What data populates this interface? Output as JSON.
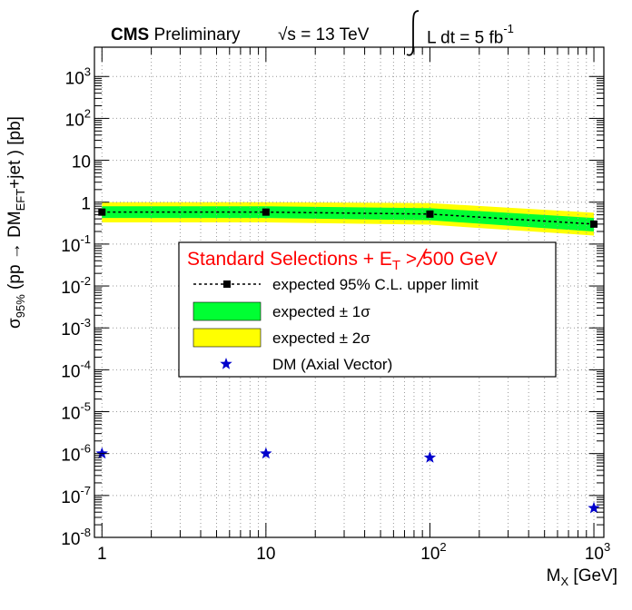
{
  "header": {
    "experiment": "CMS",
    "status": "Preliminary",
    "energy": "√s = 13 TeV",
    "lumi_prefix": "L dt = 5 fb",
    "lumi_exp": "-1"
  },
  "axes": {
    "y_sigma": "σ",
    "y_sub": "95%",
    "y_mid": "(pp → DM",
    "y_sub2": "EFT",
    "y_tail": "+jet ) [pb]",
    "x_main": "M",
    "x_sub": "X",
    "x_tail": " [GeV]"
  },
  "legend": {
    "title_main": "Standard Selections +",
    "title_met": "E",
    "title_met_sub": "T",
    "title_cut": "> 500 GeV",
    "expected": "expected 95% C.L. upper limit",
    "one_sigma": "expected ± 1σ",
    "two_sigma": "expected ± 2σ",
    "dm": "DM (Axial Vector)"
  },
  "colors": {
    "band_1sigma": "#00ff33",
    "band_2sigma": "#ffff00",
    "expected": "#000000",
    "dm_marker": "#0000cc",
    "legend_title": "#ff0000"
  },
  "chart_data": {
    "type": "line",
    "xscale": "log",
    "yscale": "log",
    "xlim": [
      0.9,
      1150
    ],
    "ylim": [
      1e-08,
      5000
    ],
    "x_ticks": [
      {
        "v": 1,
        "label": "1"
      },
      {
        "v": 10,
        "label": "10"
      },
      {
        "v": 100,
        "label": "10",
        "exp": "2"
      },
      {
        "v": 1000,
        "label": "10",
        "exp": "3"
      }
    ],
    "y_ticks": [
      {
        "v": 1000,
        "label": "10",
        "exp": "3"
      },
      {
        "v": 100,
        "label": "10",
        "exp": "2"
      },
      {
        "v": 10,
        "label": "10"
      },
      {
        "v": 1,
        "label": "1"
      },
      {
        "v": 0.1,
        "label": "10",
        "exp": "-1"
      },
      {
        "v": 0.01,
        "label": "10",
        "exp": "-2"
      },
      {
        "v": 0.001,
        "label": "10",
        "exp": "-3"
      },
      {
        "v": 0.0001,
        "label": "10",
        "exp": "-4"
      },
      {
        "v": 1e-05,
        "label": "10",
        "exp": "-5"
      },
      {
        "v": 1e-06,
        "label": "10",
        "exp": "-6"
      },
      {
        "v": 1e-07,
        "label": "10",
        "exp": "-7"
      },
      {
        "v": 1e-08,
        "label": "10",
        "exp": "-8"
      }
    ],
    "grid": true,
    "series": [
      {
        "name": "expected 95% C.L. upper limit",
        "x": [
          1,
          10,
          100,
          1000
        ],
        "y": [
          0.58,
          0.58,
          0.52,
          0.3
        ]
      },
      {
        "name": "DM (Axial Vector)",
        "x": [
          1,
          10,
          100,
          1000
        ],
        "y": [
          1e-06,
          1e-06,
          8e-07,
          5e-08
        ]
      }
    ],
    "band_1sigma": {
      "x": [
        1,
        10,
        100,
        1000
      ],
      "low": [
        0.42,
        0.42,
        0.37,
        0.2
      ],
      "high": [
        0.8,
        0.8,
        0.72,
        0.42
      ]
    },
    "band_2sigma": {
      "x": [
        1,
        10,
        100,
        1000
      ],
      "low": [
        0.33,
        0.33,
        0.29,
        0.16
      ],
      "high": [
        1.0,
        1.0,
        0.95,
        0.56
      ]
    }
  }
}
